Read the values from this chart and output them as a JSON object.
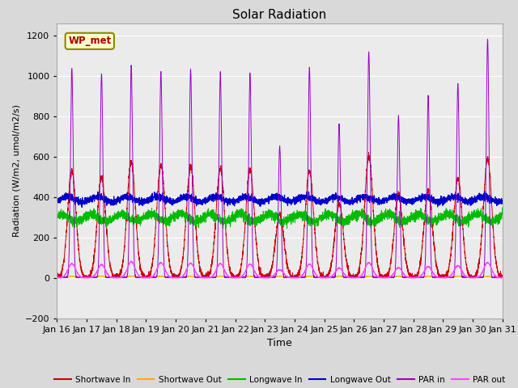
{
  "title": "Solar Radiation",
  "xlabel": "Time",
  "ylabel": "Radiation (W/m2, umol/m2/s)",
  "ylim": [
    -200,
    1260
  ],
  "yticks": [
    -200,
    0,
    200,
    400,
    600,
    800,
    1000,
    1200
  ],
  "xlim_days": [
    16,
    31
  ],
  "xtick_labels": [
    "Jan 16",
    "Jan 17",
    "Jan 18",
    "Jan 19",
    "Jan 20",
    "Jan 21",
    "Jan 22",
    "Jan 23",
    "Jan 24",
    "Jan 25",
    "Jan 26",
    "Jan 27",
    "Jan 28",
    "Jan 29",
    "Jan 30",
    "Jan 31"
  ],
  "legend_label": "WP_met",
  "series": {
    "shortwave_in": {
      "label": "Shortwave In",
      "color": "#cc0000"
    },
    "shortwave_out": {
      "label": "Shortwave Out",
      "color": "#ffaa00"
    },
    "longwave_in": {
      "label": "Longwave In",
      "color": "#00bb00"
    },
    "longwave_out": {
      "label": "Longwave Out",
      "color": "#0000cc"
    },
    "par_in": {
      "label": "PAR in",
      "color": "#9900cc"
    },
    "par_out": {
      "label": "PAR out",
      "color": "#ff44ff"
    }
  },
  "background_color": "#d9d9d9",
  "plot_bg_color": "#ebebeb",
  "grid_color": "#ffffff",
  "par_in_amps": [
    1040,
    1010,
    1050,
    1020,
    1030,
    1010,
    1010,
    650,
    1040,
    760,
    1120,
    800,
    900,
    960,
    1180
  ],
  "sw_in_amps": [
    530,
    500,
    575,
    560,
    550,
    540,
    535,
    310,
    530,
    370,
    600,
    410,
    430,
    490,
    590
  ],
  "par_out_amps": [
    70,
    65,
    80,
    75,
    72,
    70,
    68,
    40,
    68,
    48,
    75,
    50,
    55,
    60,
    75
  ],
  "lw_in_base": 310,
  "lw_out_base": 370
}
